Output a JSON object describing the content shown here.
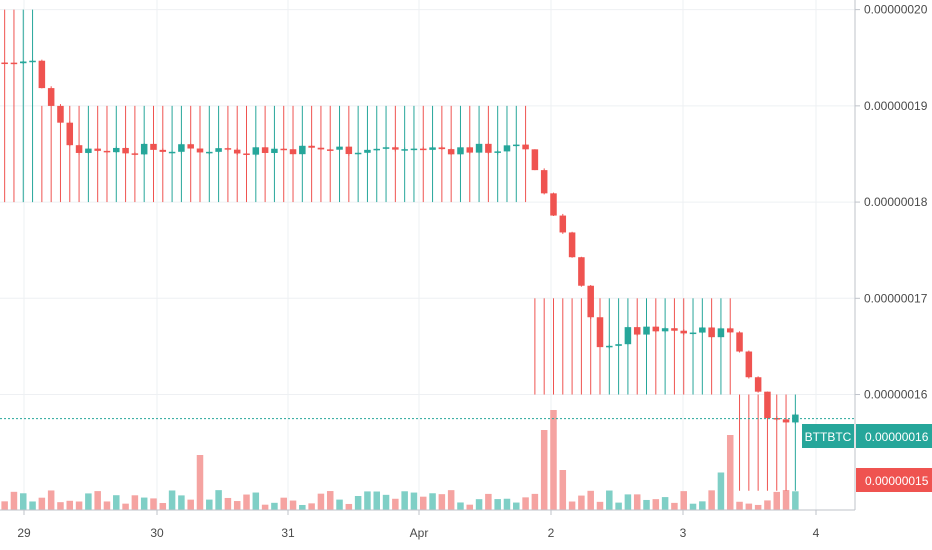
{
  "chart_data": {
    "type": "candlestick",
    "symbol": "BTTBTC",
    "x_ticks": [
      "29",
      "30",
      "31",
      "Apr",
      "2",
      "3",
      "4"
    ],
    "y_ticks": [
      "0.00000020",
      "0.00000019",
      "0.00000018",
      "0.00000017",
      "0.00000016"
    ],
    "ylim": [
      1.48e-07,
      2.01e-07
    ],
    "grid": true,
    "last_price_label": "0.00000016",
    "low_price_label": "0.00000015",
    "colors": {
      "up": "#26a69a",
      "down": "#ef5350",
      "up_volume": "#7fcfc6",
      "down_volume": "#f5a3a1",
      "grid": "#eef0f3",
      "axis_text": "#4a4a4a"
    },
    "segments": [
      {
        "from": 0,
        "to": 4,
        "close": 1.945e-07,
        "range": [
          1.8e-07,
          2e-07
        ]
      },
      {
        "from": 4,
        "to": 54,
        "close": 1.855e-07,
        "range": [
          1.8e-07,
          1.9e-07
        ]
      },
      {
        "from": 54,
        "to": 57,
        "close": 1.855e-07,
        "range": [
          1.8e-07,
          1.9e-07
        ]
      },
      {
        "from": 57,
        "to": 67,
        "close": 1.655e-07,
        "range": [
          1.6e-07,
          1.7e-07
        ]
      },
      {
        "from": 67,
        "to": 79,
        "close": 1.665e-07,
        "range": [
          1.6e-07,
          1.7e-07
        ]
      },
      {
        "from": 79,
        "to": 86,
        "close": 1.575e-07,
        "range": [
          1.5e-07,
          1.6e-07
        ]
      }
    ],
    "volume_scale": "relative"
  }
}
